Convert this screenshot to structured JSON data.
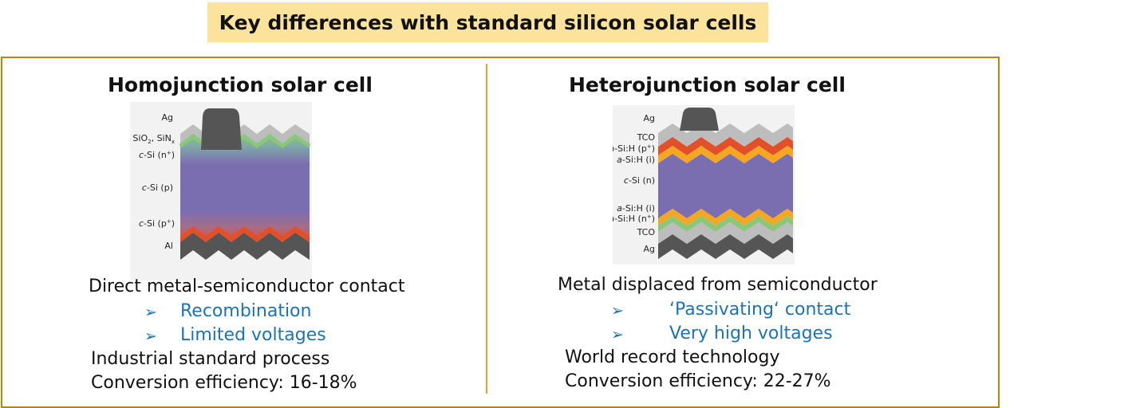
{
  "title": "Key differences with standard silicon solar cells",
  "colors": {
    "title_bg": "#fbe39c",
    "frame": "#b8860b",
    "divider": "#e3a22a",
    "bullet_text": "#1b73b6",
    "metal_dark": "#555555",
    "oxide_gray": "#bdbdbd",
    "silicon_purple": "#7b6eb0",
    "n_plus_green": "#8bc77a",
    "p_plus_red": "#e2502a",
    "a_si_orange": "#f5a623",
    "a_si_red": "#e2502a"
  },
  "left": {
    "heading": "Homojunction solar cell",
    "layers": {
      "ag": "Ag",
      "sio2_prefix": "SiO",
      "sio2_sub": "2",
      "sio2_mid": ", SiN",
      "sio2_sub2": "x",
      "csi_n_italic": "c",
      "csi_n_rest": "-Si (n",
      "csi_n_sup": "+",
      "csi_n_close": ")",
      "csi_p_italic": "c",
      "csi_p_rest": "-Si (p)",
      "csi_pp_italic": "c",
      "csi_pp_rest": "-Si (p",
      "csi_pp_sup": "+",
      "csi_pp_close": ")",
      "al": "Al"
    },
    "description": "Direct metal-semiconductor contact",
    "bullets": [
      "Recombination",
      "Limited voltages"
    ],
    "notes": [
      "Industrial standard process",
      "Conversion efficiency: 16-18%"
    ]
  },
  "right": {
    "heading": "Heterojunction solar cell",
    "layers": {
      "ag_top": "Ag",
      "tco_top": "TCO",
      "asi_p_italic": "a",
      "asi_p_rest": "-Si:H (p",
      "asi_p_sup": "+",
      "asi_p_close": ")",
      "asi_i_top_italic": "a",
      "asi_i_top_rest": "-Si:H (i)",
      "csi_n_italic": "c",
      "csi_n_rest": "-Si (n)",
      "asi_i_bot_italic": "a",
      "asi_i_bot_rest": "-Si:H (i)",
      "asi_n_italic": "a",
      "asi_n_rest": "-Si:H (n",
      "asi_n_sup": "+",
      "asi_n_close": ")",
      "tco_bot": "TCO",
      "ag_bot": "Ag"
    },
    "description": "Metal displaced from semiconductor",
    "bullets": [
      "‘Passivating‘ contact",
      "Very high voltages"
    ],
    "notes": [
      "World record technology",
      "Conversion efficiency: 22-27%"
    ]
  }
}
